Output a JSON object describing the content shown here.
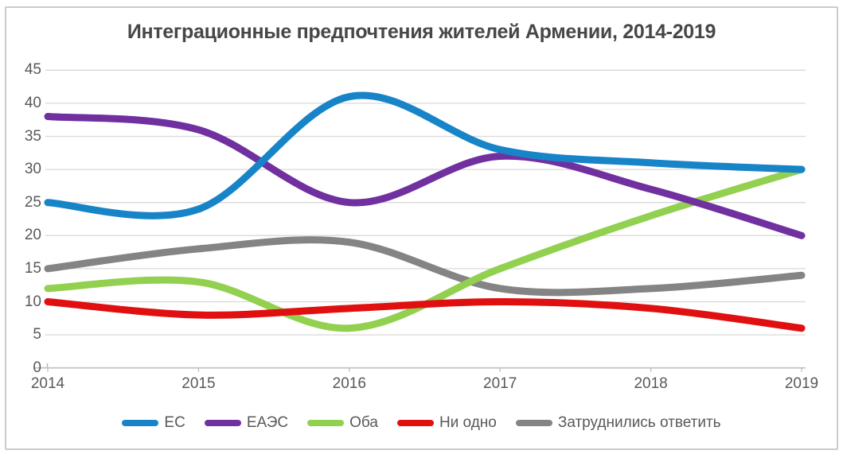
{
  "title": "Интеграционные предпочтения жителей Армении, 2014-2019",
  "chart_data": {
    "type": "line",
    "smoothed": true,
    "title": "Интеграционные предпочтения жителей Армении, 2014-2019",
    "x": [
      2014,
      2015,
      2016,
      2017,
      2018,
      2019
    ],
    "x_tick_labels": [
      "2014",
      "2015",
      "2016",
      "2017",
      "2018",
      "2019"
    ],
    "y_ticks": [
      0,
      5,
      10,
      15,
      20,
      25,
      30,
      35,
      40,
      45
    ],
    "ylim": [
      0,
      45
    ],
    "xlabel": "",
    "ylabel": "",
    "grid": true,
    "legend_position": "bottom",
    "series": [
      {
        "name": "ЕС",
        "slug": "ec",
        "color": "#1884c8",
        "values": [
          25,
          24,
          41,
          33,
          31,
          30
        ]
      },
      {
        "name": "ЕАЭС",
        "slug": "eaes",
        "color": "#7030a0",
        "values": [
          38,
          36,
          25,
          32,
          27,
          20
        ]
      },
      {
        "name": "Оба",
        "slug": "oba",
        "color": "#92d050",
        "values": [
          12,
          13,
          6,
          15,
          23,
          30
        ]
      },
      {
        "name": "Ни одно",
        "slug": "ni-odno",
        "color": "#e01010",
        "values": [
          10,
          8,
          9,
          10,
          9,
          6
        ]
      },
      {
        "name": "Затруднились ответить",
        "slug": "zatrudnilis",
        "color": "#848484",
        "values": [
          15,
          18,
          19,
          12,
          12,
          14
        ]
      }
    ],
    "draw_order": [
      "zatrudnilis",
      "oba",
      "ni-odno",
      "eaes",
      "ec"
    ]
  },
  "style": {
    "gridline_color": "#d9d9d9",
    "axis_color": "#bfbfbf",
    "tick_text_color": "#595959",
    "title_color": "#474747",
    "frame_border_color": "#cbcbcb",
    "line_width": 9
  }
}
